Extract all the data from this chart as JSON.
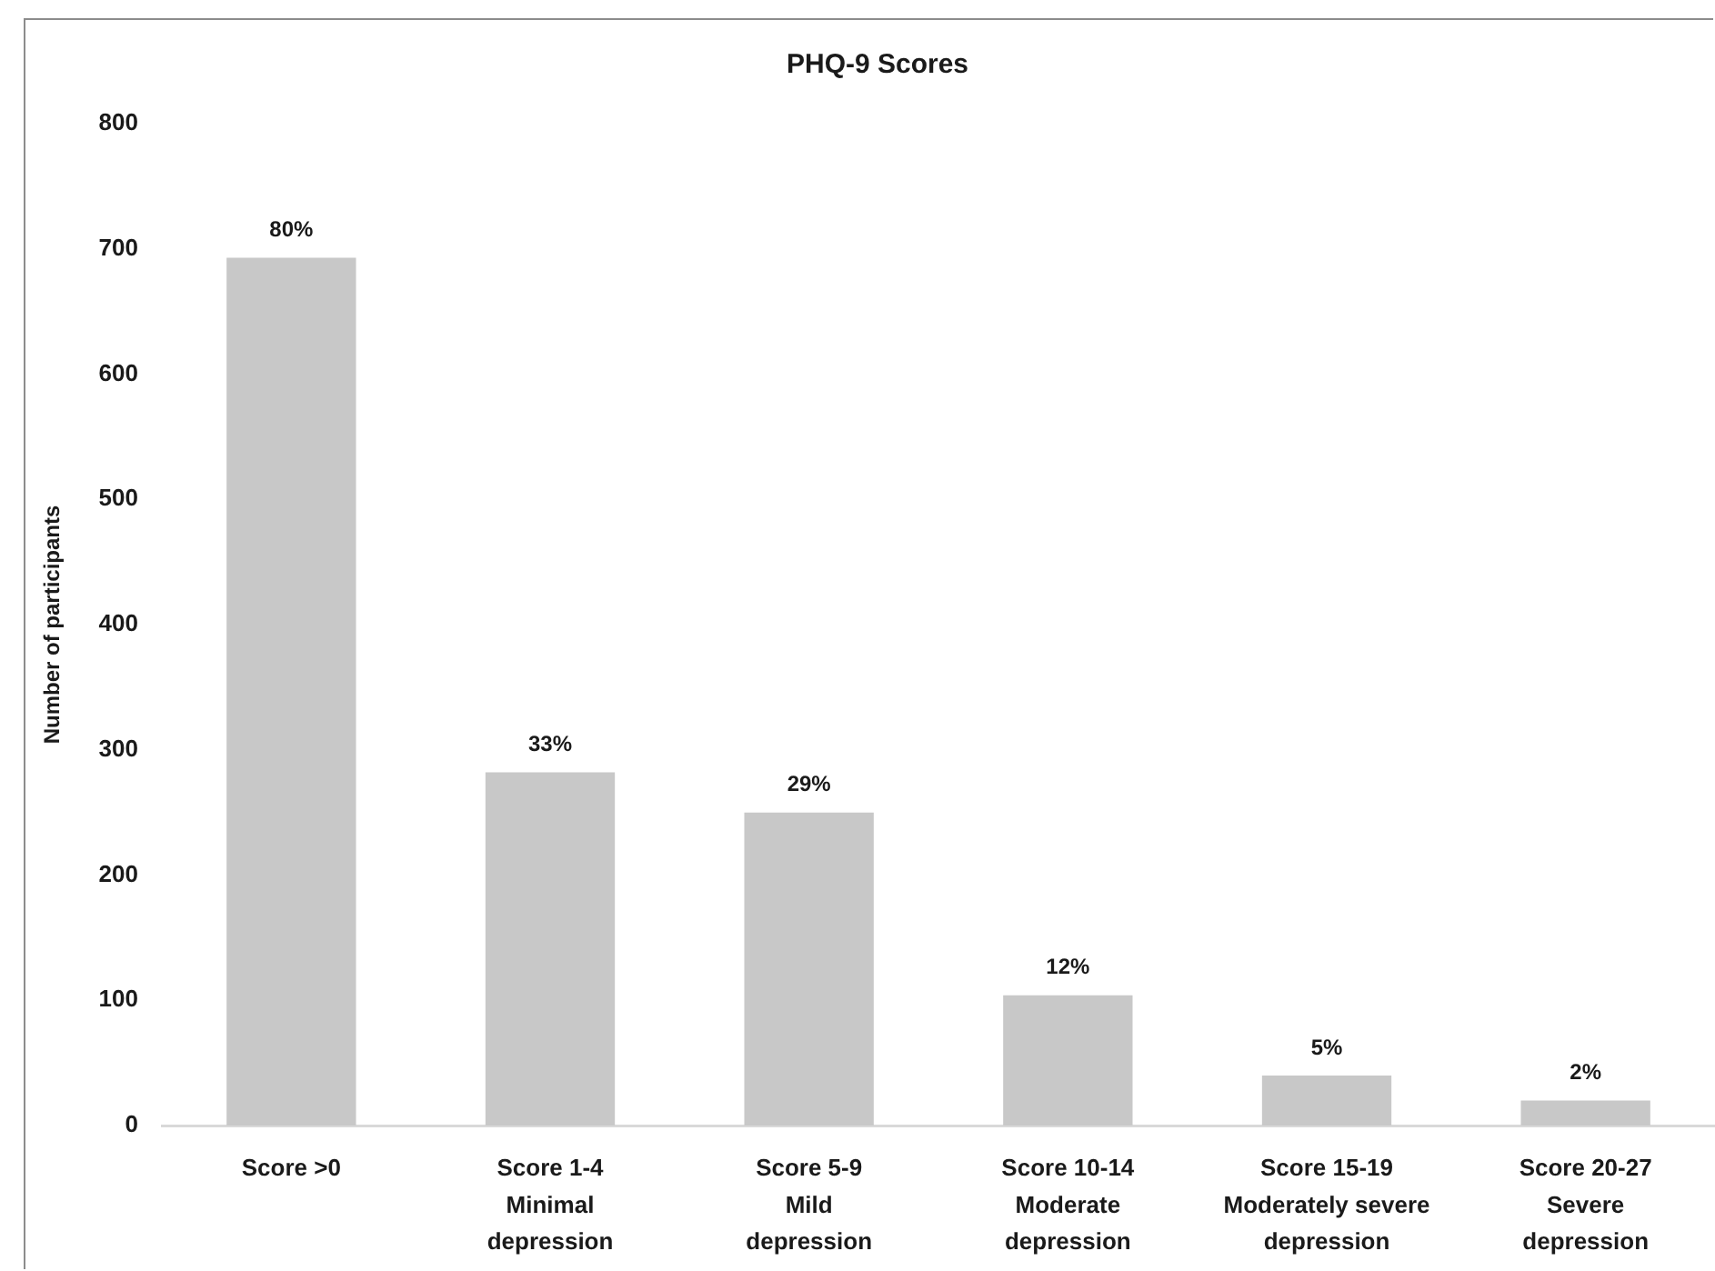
{
  "chart_data": {
    "type": "bar",
    "title": "PHQ-9 Scores",
    "ylabel": "Number of participants",
    "categories": [
      "Score >0",
      "Score 1-4\nMinimal\ndepression",
      "Score 5-9\nMild\ndepression",
      "Score 10-14\nModerate\ndepression",
      "Score 15-19\nModerately severe\ndepression",
      "Score 20-27\nSevere\ndepression"
    ],
    "values": [
      693,
      282,
      250,
      104,
      40,
      20
    ],
    "color": "#c8c8c8",
    "ylim": [
      0,
      800
    ],
    "yticks": [
      0,
      100,
      200,
      300,
      400,
      500,
      600,
      700,
      800
    ],
    "annotations": [
      {
        "text": "80%",
        "x": "Score >0",
        "y": 693
      },
      {
        "text": "33%",
        "x": "Score 1-4\nMinimal\ndepression",
        "y": 282
      },
      {
        "text": "29%",
        "x": "Score 5-9\nMild\ndepression",
        "y": 250
      },
      {
        "text": "12%",
        "x": "Score 10-14\nModerate\ndepression",
        "y": 104
      },
      {
        "text": "5%",
        "x": "Score 15-19\nModerately severe\ndepression",
        "y": 40
      },
      {
        "text": "2%",
        "x": "Score 20-27\nSevere\ndepression",
        "y": 20
      }
    ]
  }
}
